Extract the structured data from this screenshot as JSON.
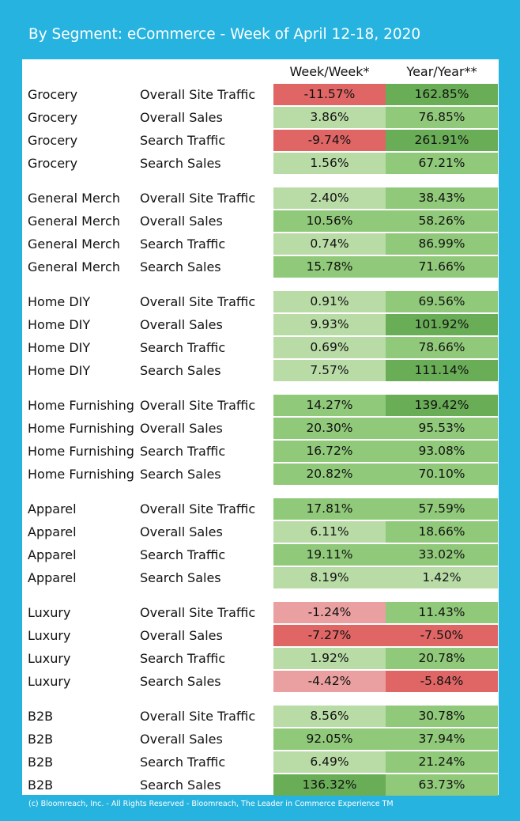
{
  "title": "By Segment: eCommerce - Week of April 12-18, 2020",
  "footer": "(c) Bloomreach, Inc. - All Rights Reserved - Bloomreach, The Leader in Commerce Experience TM",
  "colors": {
    "frame": "#27b3e0",
    "green_strong": "#6aad57",
    "green_mid": "#90c97a",
    "green_light": "#b9dca7",
    "red_strong": "#e06666",
    "red_light": "#eaa0a0"
  },
  "chart_data": {
    "type": "table",
    "title": "By Segment: eCommerce - Week of April 12-18, 2020",
    "columns": [
      "Week/Week*",
      "Year/Year**"
    ],
    "groups": [
      {
        "segment": "Grocery",
        "rows": [
          {
            "metric": "Overall Site Traffic",
            "ww": "-11.57%",
            "yy": "162.85%",
            "ww_color": "red_strong",
            "yy_color": "green_strong"
          },
          {
            "metric": "Overall Sales",
            "ww": "3.86%",
            "yy": "76.85%",
            "ww_color": "green_light",
            "yy_color": "green_mid"
          },
          {
            "metric": "Search Traffic",
            "ww": "-9.74%",
            "yy": "261.91%",
            "ww_color": "red_strong",
            "yy_color": "green_strong"
          },
          {
            "metric": "Search Sales",
            "ww": "1.56%",
            "yy": "67.21%",
            "ww_color": "green_light",
            "yy_color": "green_mid"
          }
        ]
      },
      {
        "segment": "General Merch",
        "rows": [
          {
            "metric": "Overall Site Traffic",
            "ww": "2.40%",
            "yy": "38.43%",
            "ww_color": "green_light",
            "yy_color": "green_mid"
          },
          {
            "metric": "Overall Sales",
            "ww": "10.56%",
            "yy": "58.26%",
            "ww_color": "green_mid",
            "yy_color": "green_mid"
          },
          {
            "metric": "Search Traffic",
            "ww": "0.74%",
            "yy": "86.99%",
            "ww_color": "green_light",
            "yy_color": "green_mid"
          },
          {
            "metric": "Search Sales",
            "ww": "15.78%",
            "yy": "71.66%",
            "ww_color": "green_mid",
            "yy_color": "green_mid"
          }
        ]
      },
      {
        "segment": "Home DIY",
        "rows": [
          {
            "metric": "Overall Site Traffic",
            "ww": "0.91%",
            "yy": "69.56%",
            "ww_color": "green_light",
            "yy_color": "green_mid"
          },
          {
            "metric": "Overall Sales",
            "ww": "9.93%",
            "yy": "101.92%",
            "ww_color": "green_light",
            "yy_color": "green_strong"
          },
          {
            "metric": "Search Traffic",
            "ww": "0.69%",
            "yy": "78.66%",
            "ww_color": "green_light",
            "yy_color": "green_mid"
          },
          {
            "metric": "Search Sales",
            "ww": "7.57%",
            "yy": "111.14%",
            "ww_color": "green_light",
            "yy_color": "green_strong"
          }
        ]
      },
      {
        "segment": "Home Furnishing",
        "rows": [
          {
            "metric": "Overall Site Traffic",
            "ww": "14.27%",
            "yy": "139.42%",
            "ww_color": "green_mid",
            "yy_color": "green_strong"
          },
          {
            "metric": "Overall Sales",
            "ww": "20.30%",
            "yy": "95.53%",
            "ww_color": "green_mid",
            "yy_color": "green_mid"
          },
          {
            "metric": "Search Traffic",
            "ww": "16.72%",
            "yy": "93.08%",
            "ww_color": "green_mid",
            "yy_color": "green_mid"
          },
          {
            "metric": "Search Sales",
            "ww": "20.82%",
            "yy": "70.10%",
            "ww_color": "green_mid",
            "yy_color": "green_mid"
          }
        ]
      },
      {
        "segment": "Apparel",
        "rows": [
          {
            "metric": "Overall Site Traffic",
            "ww": "17.81%",
            "yy": "57.59%",
            "ww_color": "green_mid",
            "yy_color": "green_mid"
          },
          {
            "metric": "Overall Sales",
            "ww": "6.11%",
            "yy": "18.66%",
            "ww_color": "green_light",
            "yy_color": "green_mid"
          },
          {
            "metric": "Search Traffic",
            "ww": "19.11%",
            "yy": "33.02%",
            "ww_color": "green_mid",
            "yy_color": "green_mid"
          },
          {
            "metric": "Search Sales",
            "ww": "8.19%",
            "yy": "1.42%",
            "ww_color": "green_light",
            "yy_color": "green_light"
          }
        ]
      },
      {
        "segment": "Luxury",
        "rows": [
          {
            "metric": "Overall Site Traffic",
            "ww": "-1.24%",
            "yy": "11.43%",
            "ww_color": "red_light",
            "yy_color": "green_mid"
          },
          {
            "metric": "Overall Sales",
            "ww": "-7.27%",
            "yy": "-7.50%",
            "ww_color": "red_strong",
            "yy_color": "red_strong"
          },
          {
            "metric": "Search Traffic",
            "ww": "1.92%",
            "yy": "20.78%",
            "ww_color": "green_light",
            "yy_color": "green_mid"
          },
          {
            "metric": "Search Sales",
            "ww": "-4.42%",
            "yy": "-5.84%",
            "ww_color": "red_light",
            "yy_color": "red_strong"
          }
        ]
      },
      {
        "segment": "B2B",
        "rows": [
          {
            "metric": "Overall Site Traffic",
            "ww": "8.56%",
            "yy": "30.78%",
            "ww_color": "green_light",
            "yy_color": "green_mid"
          },
          {
            "metric": "Overall Sales",
            "ww": "92.05%",
            "yy": "37.94%",
            "ww_color": "green_mid",
            "yy_color": "green_mid"
          },
          {
            "metric": "Search Traffic",
            "ww": "6.49%",
            "yy": "21.24%",
            "ww_color": "green_light",
            "yy_color": "green_mid"
          },
          {
            "metric": "Search Sales",
            "ww": "136.32%",
            "yy": "63.73%",
            "ww_color": "green_strong",
            "yy_color": "green_mid"
          }
        ]
      }
    ]
  }
}
